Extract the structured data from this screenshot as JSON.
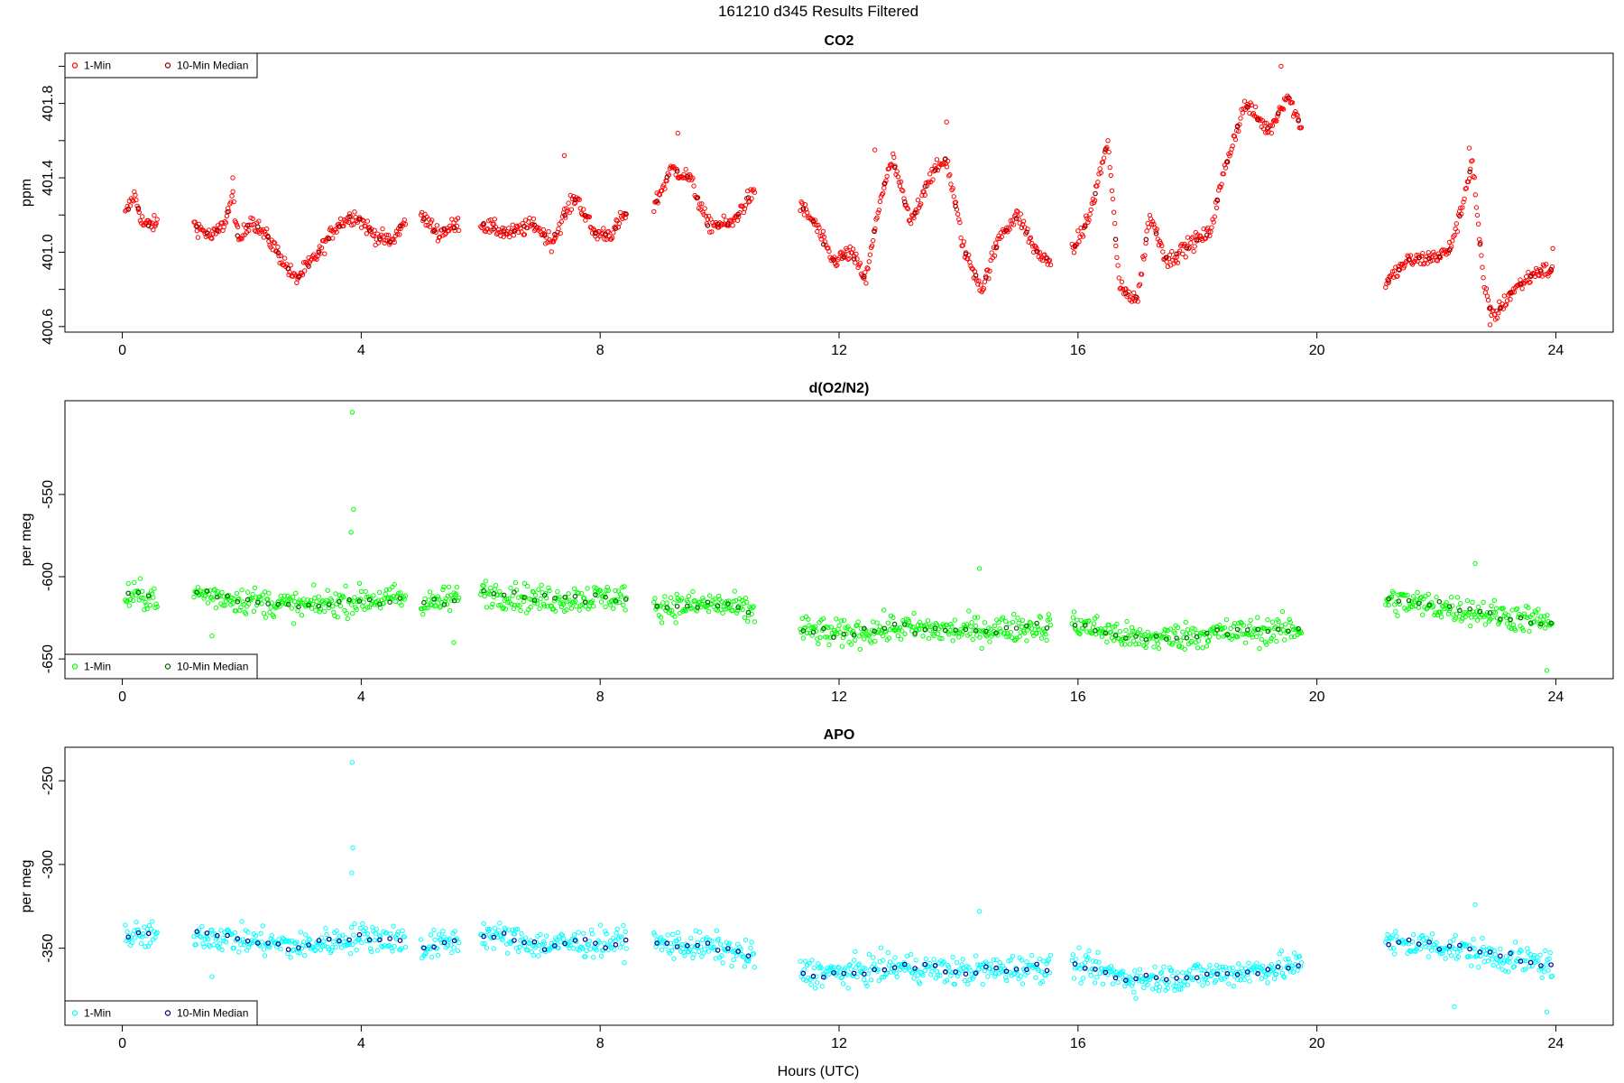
{
  "title": "161210   d345   Results Filtered",
  "xlabel": "Hours (UTC)",
  "chart_data": [
    {
      "type": "scatter",
      "title": "CO2",
      "ylabel": "ppm",
      "xlim": [
        -0.96,
        24.96
      ],
      "ylim": [
        400.57,
        402.07
      ],
      "xticks": [
        0,
        4,
        8,
        12,
        16,
        20,
        24
      ],
      "yticks": [
        400.6,
        400.8,
        401.0,
        401.2,
        401.4,
        401.6,
        401.8,
        402.0
      ],
      "ytick_labels": [
        "400.6",
        "",
        "401.0",
        "",
        "401.4",
        "",
        "401.8",
        ""
      ],
      "legend": {
        "position": "top-left",
        "items": [
          "1-Min",
          "10-Min Median"
        ]
      },
      "series": [
        {
          "name": "1-Min",
          "color": "#ff0000",
          "noise": 0.03,
          "trend": [
            [
              0.05,
              401.2
            ],
            [
              0.2,
              401.31
            ],
            [
              0.35,
              401.15
            ],
            [
              0.5,
              401.15
            ],
            [
              0.6,
              401.15
            ],
            [
              1.2,
              401.15
            ],
            [
              1.5,
              401.08
            ],
            [
              1.7,
              401.15
            ],
            [
              1.85,
              401.3
            ],
            [
              1.95,
              401.05
            ],
            [
              2.15,
              401.18
            ],
            [
              2.5,
              401.05
            ],
            [
              2.9,
              400.85
            ],
            [
              3.3,
              401.0
            ],
            [
              3.6,
              401.15
            ],
            [
              3.9,
              401.2
            ],
            [
              4.2,
              401.1
            ],
            [
              4.5,
              401.05
            ],
            [
              4.7,
              401.15
            ],
            [
              5.0,
              401.2
            ],
            [
              5.3,
              401.1
            ],
            [
              5.6,
              401.15
            ],
            [
              6.0,
              401.15
            ],
            [
              6.5,
              401.1
            ],
            [
              6.9,
              401.15
            ],
            [
              7.2,
              401.05
            ],
            [
              7.4,
              401.2
            ],
            [
              7.6,
              401.3
            ],
            [
              7.9,
              401.1
            ],
            [
              8.2,
              401.1
            ],
            [
              8.4,
              401.2
            ],
            [
              8.9,
              401.25
            ],
            [
              9.2,
              401.45
            ],
            [
              9.5,
              401.4
            ],
            [
              9.8,
              401.15
            ],
            [
              10.2,
              401.15
            ],
            [
              10.5,
              401.3
            ],
            [
              10.6,
              401.3
            ],
            [
              11.35,
              401.25
            ],
            [
              11.6,
              401.15
            ],
            [
              11.9,
              400.95
            ],
            [
              12.2,
              401.0
            ],
            [
              12.45,
              400.85
            ],
            [
              12.7,
              401.3
            ],
            [
              12.9,
              401.5
            ],
            [
              13.2,
              401.15
            ],
            [
              13.5,
              401.4
            ],
            [
              13.8,
              401.5
            ],
            [
              14.1,
              401.0
            ],
            [
              14.4,
              400.8
            ],
            [
              14.7,
              401.1
            ],
            [
              15.0,
              401.2
            ],
            [
              15.3,
              401.0
            ],
            [
              15.5,
              400.95
            ],
            [
              15.9,
              401.0
            ],
            [
              16.2,
              401.2
            ],
            [
              16.5,
              401.6
            ],
            [
              16.7,
              400.8
            ],
            [
              17.0,
              400.75
            ],
            [
              17.2,
              401.2
            ],
            [
              17.5,
              400.95
            ],
            [
              17.9,
              401.05
            ],
            [
              18.2,
              401.1
            ],
            [
              18.5,
              401.5
            ],
            [
              18.8,
              401.8
            ],
            [
              19.2,
              401.65
            ],
            [
              19.5,
              401.85
            ],
            [
              19.7,
              401.7
            ],
            [
              21.15,
              400.83
            ],
            [
              21.5,
              400.95
            ],
            [
              21.9,
              400.97
            ],
            [
              22.2,
              401.0
            ],
            [
              22.4,
              401.2
            ],
            [
              22.6,
              401.5
            ],
            [
              22.8,
              400.8
            ],
            [
              22.95,
              400.65
            ],
            [
              23.3,
              400.8
            ],
            [
              23.7,
              400.9
            ],
            [
              23.95,
              400.9
            ]
          ],
          "segments": [
            [
              0.05,
              0.6
            ],
            [
              1.2,
              4.75
            ],
            [
              5.0,
              5.65
            ],
            [
              6.0,
              8.45
            ],
            [
              8.9,
              10.6
            ],
            [
              11.35,
              15.55
            ],
            [
              15.9,
              19.75
            ],
            [
              21.15,
              23.95
            ]
          ],
          "outliers": [
            [
              0.55,
              401.15
            ],
            [
              1.85,
              401.4
            ],
            [
              7.4,
              401.52
            ],
            [
              9.3,
              401.64
            ],
            [
              12.6,
              401.55
            ],
            [
              13.8,
              401.7
            ],
            [
              19.4,
              402.0
            ],
            [
              22.55,
              401.56
            ],
            [
              22.9,
              400.61
            ],
            [
              23.95,
              401.02
            ]
          ]
        },
        {
          "name": "10-Min Median",
          "color": "#8b0000",
          "noise": 0.01,
          "step": 0.17
        }
      ]
    },
    {
      "type": "scatter",
      "title": "d(O2/N2)",
      "ylabel": "per meg",
      "xlim": [
        -0.96,
        24.96
      ],
      "ylim": [
        -662,
        -493
      ],
      "xticks": [
        0,
        4,
        8,
        12,
        16,
        20,
        24
      ],
      "yticks": [
        -650,
        -600,
        -550
      ],
      "ytick_labels": [
        "-650",
        "-600",
        "-550"
      ],
      "legend": {
        "position": "bottom-left",
        "items": [
          "1-Min",
          "10-Min Median"
        ]
      },
      "series": [
        {
          "name": "1-Min",
          "color": "#00ff00",
          "noise": 6,
          "trend": [
            [
              0.05,
              -612
            ],
            [
              0.6,
              -612
            ],
            [
              1.2,
              -610
            ],
            [
              2.0,
              -614
            ],
            [
              3.0,
              -618
            ],
            [
              4.0,
              -614
            ],
            [
              4.75,
              -613
            ],
            [
              5.0,
              -618
            ],
            [
              5.65,
              -612
            ],
            [
              6.0,
              -609
            ],
            [
              7.0,
              -614
            ],
            [
              8.45,
              -612
            ],
            [
              8.9,
              -618
            ],
            [
              10.0,
              -617
            ],
            [
              10.6,
              -622
            ],
            [
              11.35,
              -632
            ],
            [
              12.0,
              -635
            ],
            [
              13.0,
              -631
            ],
            [
              14.0,
              -633
            ],
            [
              15.55,
              -630
            ],
            [
              15.9,
              -628
            ],
            [
              17.0,
              -638
            ],
            [
              18.5,
              -634
            ],
            [
              19.75,
              -632
            ],
            [
              21.15,
              -614
            ],
            [
              22.0,
              -618
            ],
            [
              23.0,
              -623
            ],
            [
              23.95,
              -628
            ]
          ],
          "segments": [
            [
              0.05,
              0.6
            ],
            [
              1.2,
              4.75
            ],
            [
              5.0,
              5.65
            ],
            [
              6.0,
              8.45
            ],
            [
              8.9,
              10.6
            ],
            [
              11.35,
              15.55
            ],
            [
              15.9,
              19.75
            ],
            [
              21.15,
              23.95
            ]
          ],
          "outliers": [
            [
              3.85,
              -500
            ],
            [
              3.87,
              -559
            ],
            [
              3.83,
              -573
            ],
            [
              14.35,
              -595
            ],
            [
              22.65,
              -592
            ],
            [
              23.85,
              -657
            ],
            [
              1.5,
              -636
            ],
            [
              5.55,
              -640
            ]
          ]
        },
        {
          "name": "10-Min Median",
          "color": "#006400",
          "noise": 2,
          "step": 0.17
        }
      ]
    },
    {
      "type": "scatter",
      "title": "APO",
      "ylabel": "per meg",
      "xlim": [
        -0.96,
        24.96
      ],
      "ylim": [
        -396,
        -230
      ],
      "xticks": [
        0,
        4,
        8,
        12,
        16,
        20,
        24
      ],
      "yticks": [
        -350,
        -300,
        -250
      ],
      "ytick_labels": [
        "-350",
        "-300",
        "-250"
      ],
      "legend": {
        "position": "bottom-left",
        "items": [
          "1-Min",
          "10-Min Median"
        ]
      },
      "series": [
        {
          "name": "1-Min",
          "color": "#00ffff",
          "noise": 6,
          "trend": [
            [
              0.05,
              -343
            ],
            [
              0.6,
              -343
            ],
            [
              1.2,
              -341
            ],
            [
              2.0,
              -345
            ],
            [
              3.0,
              -349
            ],
            [
              4.0,
              -343
            ],
            [
              4.75,
              -345
            ],
            [
              5.0,
              -350
            ],
            [
              5.65,
              -345
            ],
            [
              6.0,
              -341
            ],
            [
              7.0,
              -348
            ],
            [
              8.45,
              -346
            ],
            [
              8.9,
              -347
            ],
            [
              10.0,
              -350
            ],
            [
              10.6,
              -356
            ],
            [
              11.35,
              -364
            ],
            [
              12.0,
              -365
            ],
            [
              13.0,
              -361
            ],
            [
              14.0,
              -364
            ],
            [
              15.55,
              -361
            ],
            [
              15.9,
              -360
            ],
            [
              17.0,
              -369
            ],
            [
              18.5,
              -365
            ],
            [
              19.75,
              -360
            ],
            [
              21.15,
              -347
            ],
            [
              22.0,
              -348
            ],
            [
              23.0,
              -355
            ],
            [
              23.95,
              -360
            ]
          ],
          "segments": [
            [
              0.05,
              0.6
            ],
            [
              1.2,
              4.75
            ],
            [
              5.0,
              5.65
            ],
            [
              6.0,
              8.45
            ],
            [
              8.9,
              10.6
            ],
            [
              11.35,
              15.55
            ],
            [
              15.9,
              19.75
            ],
            [
              21.15,
              23.95
            ]
          ],
          "outliers": [
            [
              3.85,
              -239
            ],
            [
              3.86,
              -290
            ],
            [
              3.84,
              -305
            ],
            [
              14.35,
              -328
            ],
            [
              22.65,
              -324
            ],
            [
              23.85,
              -388
            ],
            [
              22.3,
              -385
            ],
            [
              1.5,
              -367
            ]
          ]
        },
        {
          "name": "10-Min Median",
          "color": "#00008b",
          "noise": 2,
          "step": 0.17
        }
      ]
    }
  ]
}
